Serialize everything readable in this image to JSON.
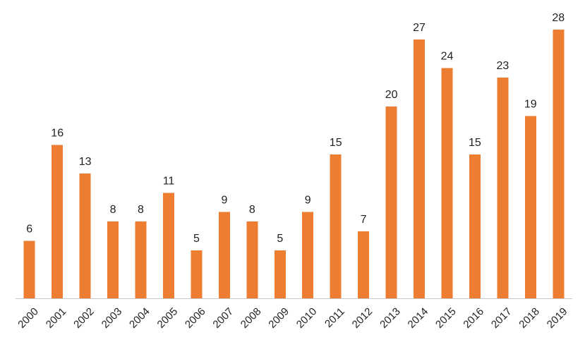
{
  "chart_data": {
    "type": "bar",
    "categories": [
      "2000",
      "2001",
      "2002",
      "2003",
      "2004",
      "2005",
      "2006",
      "2007",
      "2008",
      "2009",
      "2010",
      "2011",
      "2012",
      "2013",
      "2014",
      "2015",
      "2016",
      "2017",
      "2018",
      "2019"
    ],
    "values": [
      6,
      16,
      13,
      8,
      8,
      11,
      5,
      9,
      8,
      5,
      9,
      15,
      7,
      20,
      27,
      24,
      15,
      23,
      19,
      28
    ],
    "data_labels": [
      "6",
      "16",
      "13",
      "8",
      "8",
      "11",
      "5",
      "9",
      "8",
      "5",
      "9",
      "15",
      "7",
      "20",
      "27",
      "24",
      "15",
      "23",
      "19",
      "28"
    ],
    "title": "",
    "xlabel": "",
    "ylabel": "",
    "ylim": [
      0,
      28
    ],
    "grid": false,
    "legend": "none",
    "bar_color": "#ED7D31",
    "axis_color": "#C8C8C8"
  }
}
